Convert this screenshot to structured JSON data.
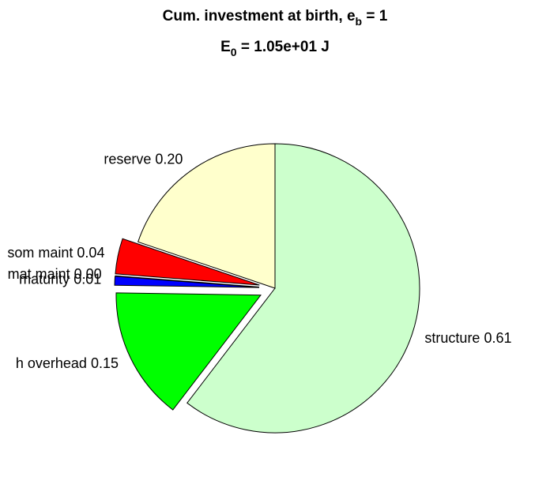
{
  "chart_data": {
    "type": "pie",
    "title": {
      "main": "Cum. investment at birth, e",
      "sub": "b",
      "tail": " = 1"
    },
    "subtitle": {
      "main": "E",
      "sub": "0",
      "tail": " = 1.05e+01 J"
    },
    "categories": [
      "structure",
      "h overhead",
      "maturity",
      "mat maint",
      "som maint",
      "reserve"
    ],
    "values": [
      0.61,
      0.15,
      0.01,
      0.0,
      0.04,
      0.2
    ],
    "value_labels": [
      "0.61",
      "0.15",
      "0.01",
      "0.00",
      "0.04",
      "0.20"
    ],
    "colors": [
      "#ccffcc",
      "#00ff00",
      "#0000ff",
      "#ff00ff",
      "#ff0000",
      "#ffffcc"
    ],
    "explode": [
      false,
      true,
      true,
      true,
      true,
      false
    ]
  }
}
